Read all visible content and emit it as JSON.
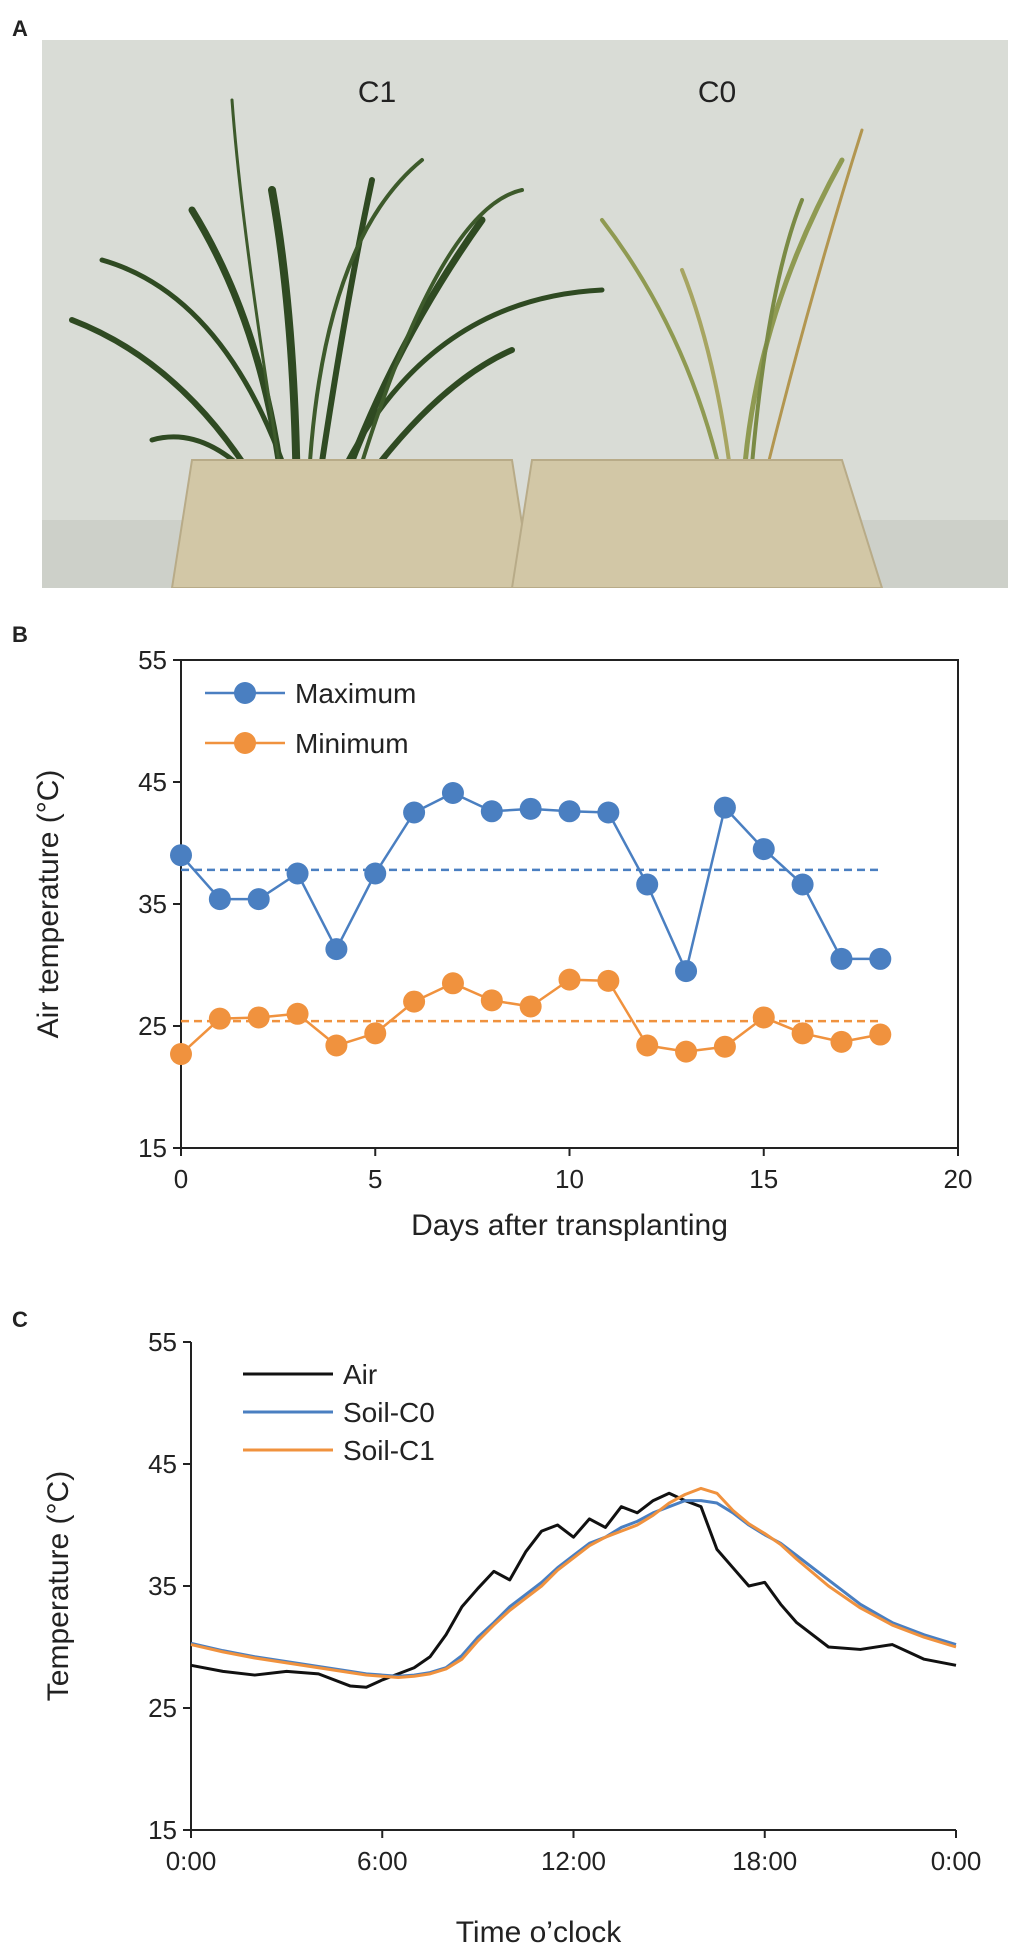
{
  "panels": {
    "a": "A",
    "b": "B",
    "c": "C"
  },
  "photo": {
    "label_left": "C1",
    "label_right": "C0",
    "colors": {
      "wall": "#d9dcd6",
      "pot": "#d2c7a6",
      "leaf": "#2f4a22",
      "leaf_pale": "#8f9a52"
    }
  },
  "chart_data": [
    {
      "type": "line",
      "panel": "B",
      "xlabel": "Days after transplanting",
      "ylabel": "Air temperature (°C)",
      "xlim": [
        0,
        20
      ],
      "ylim": [
        15,
        55
      ],
      "xticks": [
        "0",
        "5",
        "10",
        "15",
        "20"
      ],
      "yticks": [
        "15",
        "25",
        "35",
        "45",
        "55"
      ],
      "legend": "top-left",
      "x": [
        0,
        1,
        2,
        3,
        4,
        5,
        6,
        7,
        8,
        9,
        10,
        11,
        12,
        13,
        14,
        15,
        16,
        17,
        18
      ],
      "series": [
        {
          "name": "Maximum",
          "color": "#4a7fc1",
          "values": [
            39.0,
            35.4,
            35.4,
            37.5,
            31.3,
            37.5,
            42.5,
            44.1,
            42.6,
            42.8,
            42.6,
            42.5,
            36.6,
            29.5,
            42.9,
            39.5,
            36.6,
            30.5,
            30.5
          ],
          "mean": 37.8
        },
        {
          "name": "Minimum",
          "color": "#f0923e",
          "values": [
            22.7,
            25.6,
            25.7,
            26.0,
            23.4,
            24.4,
            27.0,
            28.5,
            27.1,
            26.6,
            28.8,
            28.7,
            23.4,
            22.9,
            23.3,
            25.7,
            24.4,
            23.7,
            24.3
          ],
          "mean": 25.4
        }
      ]
    },
    {
      "type": "line",
      "panel": "C",
      "xlabel": "Time o’clock",
      "ylabel": "Temperature (°C)",
      "xlim": [
        0,
        24
      ],
      "ylim": [
        15,
        55
      ],
      "xticks": [
        "0:00",
        "6:00",
        "12:00",
        "18:00",
        "0:00"
      ],
      "yticks": [
        "15",
        "25",
        "35",
        "45",
        "55"
      ],
      "legend": "top-left",
      "x": [
        0,
        1,
        2,
        3,
        4,
        5,
        5.5,
        6,
        6.5,
        7,
        7.5,
        8,
        8.5,
        9,
        9.5,
        10,
        10.5,
        11,
        11.5,
        12,
        12.5,
        13,
        13.5,
        14,
        14.5,
        15,
        15.5,
        16,
        16.5,
        17,
        17.5,
        18,
        18.5,
        19,
        20,
        21,
        22,
        23,
        24
      ],
      "series": [
        {
          "name": "Air",
          "color": "#111111",
          "values": [
            28.5,
            28.0,
            27.7,
            28.0,
            27.8,
            26.8,
            26.7,
            27.3,
            27.8,
            28.3,
            29.2,
            31.0,
            33.3,
            34.8,
            36.2,
            35.5,
            37.8,
            39.5,
            40.0,
            39.0,
            40.5,
            39.8,
            41.5,
            41.0,
            42.0,
            42.6,
            42.0,
            41.5,
            38.0,
            36.5,
            35.0,
            35.3,
            33.5,
            32.0,
            30.0,
            29.8,
            30.2,
            29.0,
            28.5
          ]
        },
        {
          "name": "Soil-C0",
          "color": "#4a7fc1",
          "values": [
            30.3,
            29.7,
            29.2,
            28.8,
            28.4,
            28.0,
            27.8,
            27.7,
            27.6,
            27.7,
            27.9,
            28.3,
            29.3,
            30.8,
            32.0,
            33.3,
            34.3,
            35.3,
            36.5,
            37.5,
            38.5,
            39.0,
            39.8,
            40.3,
            41.0,
            41.5,
            42.0,
            42.0,
            41.8,
            41.0,
            40.0,
            39.2,
            38.5,
            37.5,
            35.5,
            33.5,
            32.0,
            31.0,
            30.2
          ]
        },
        {
          "name": "Soil-C1",
          "color": "#f0923e",
          "values": [
            30.2,
            29.6,
            29.1,
            28.7,
            28.3,
            27.9,
            27.7,
            27.6,
            27.5,
            27.6,
            27.8,
            28.2,
            29.0,
            30.5,
            31.8,
            33.0,
            34.0,
            35.0,
            36.3,
            37.3,
            38.3,
            39.0,
            39.5,
            40.0,
            40.8,
            41.8,
            42.5,
            43.0,
            42.6,
            41.2,
            40.1,
            39.3,
            38.4,
            37.2,
            35.0,
            33.2,
            31.8,
            30.8,
            30.0
          ]
        }
      ]
    }
  ]
}
